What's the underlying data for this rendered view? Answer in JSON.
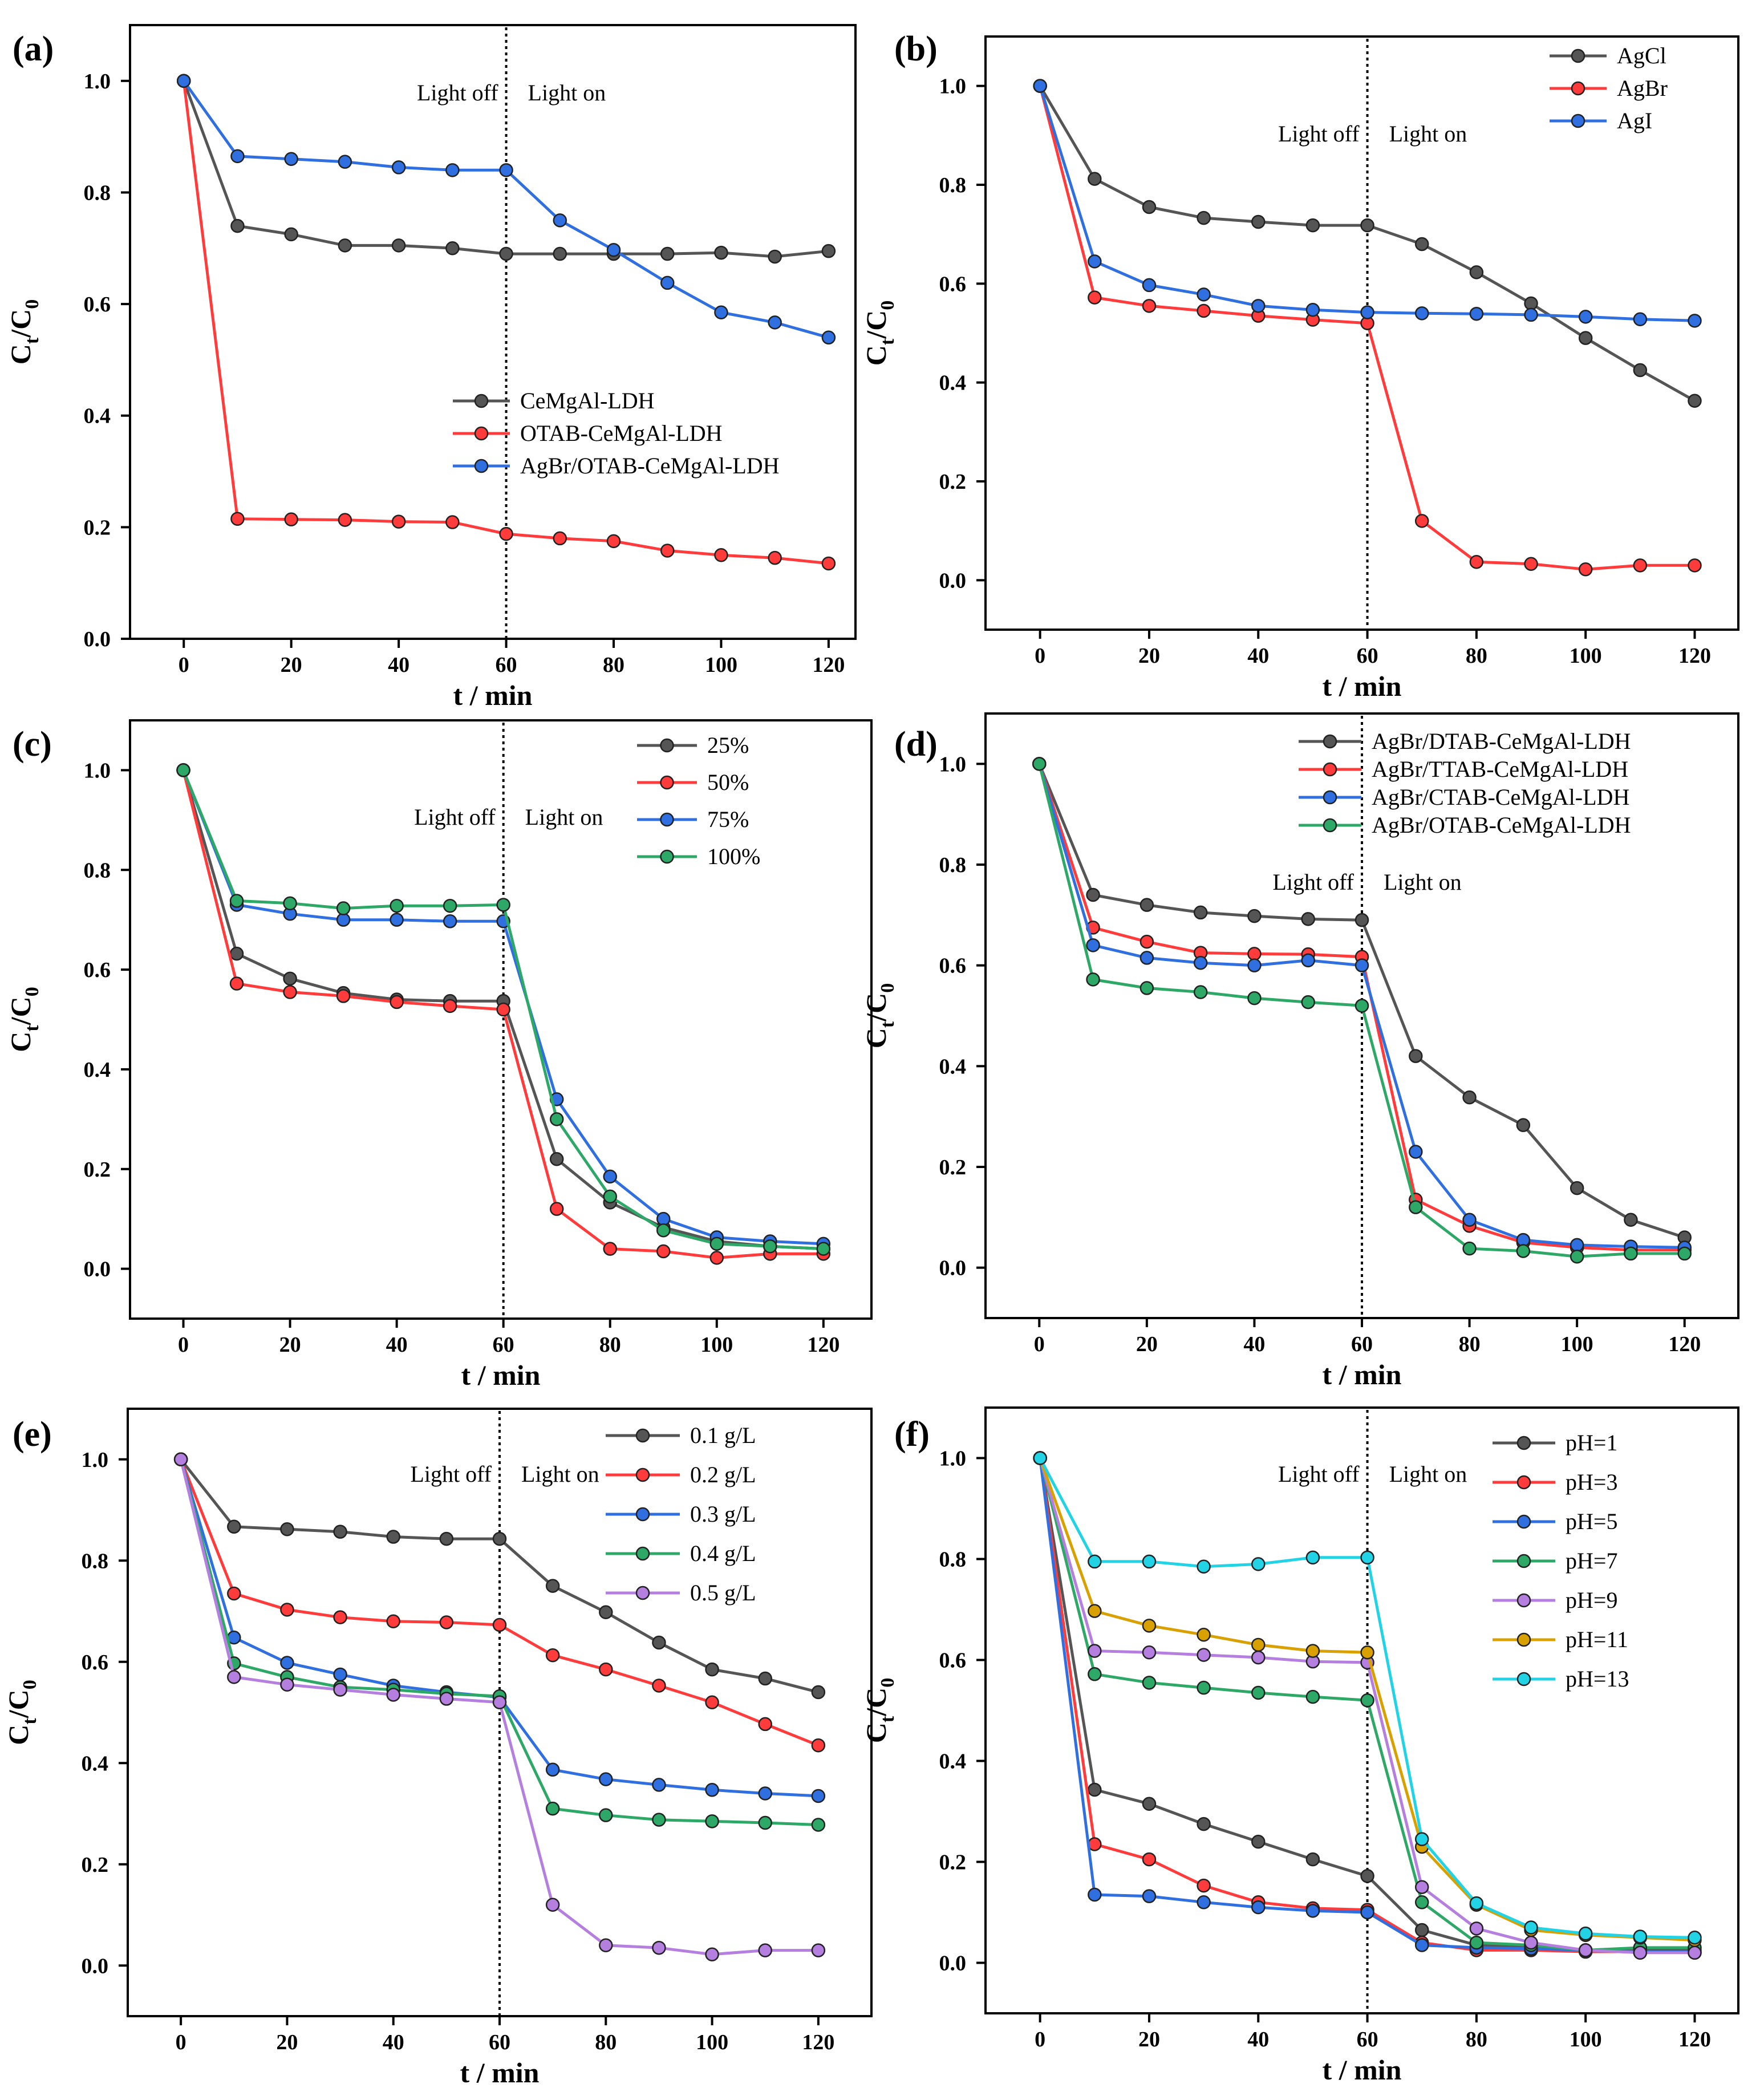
{
  "chart_data": [
    {
      "panel_label": "(a)",
      "type": "line",
      "xlabel": "t / min",
      "ylabel_main": "C",
      "ylabel_sub1": "t",
      "ylabel_mid": "/C",
      "ylabel_sub2": "0",
      "xlim": [
        -10,
        125
      ],
      "ylim": [
        0,
        1.1
      ],
      "xticks": [
        "0",
        "20",
        "40",
        "60",
        "80",
        "100",
        "120"
      ],
      "yticks": [
        "0.0",
        "0.2",
        "0.4",
        "0.6",
        "0.8",
        "1.0"
      ],
      "x": [
        0,
        10,
        20,
        30,
        40,
        50,
        60,
        70,
        80,
        90,
        100,
        110,
        120
      ],
      "divider_x": 60,
      "annotation_left": "Light off",
      "annotation_right": "Light on",
      "legend_position": "center-right",
      "series": [
        {
          "name": "CeMgAl-LDH",
          "color": "#555555",
          "values": [
            1.0,
            0.74,
            0.725,
            0.705,
            0.705,
            0.7,
            0.69,
            0.69,
            0.69,
            0.69,
            0.692,
            0.685,
            0.695
          ]
        },
        {
          "name": "OTAB-CeMgAl-LDH",
          "color": "#ff3b3b",
          "values": [
            1.0,
            0.215,
            0.214,
            0.213,
            0.21,
            0.209,
            0.188,
            0.18,
            0.175,
            0.158,
            0.15,
            0.145,
            0.135
          ]
        },
        {
          "name": "AgBr/OTAB-CeMgAl-LDH",
          "color": "#2f6fe0",
          "values": [
            1.0,
            0.865,
            0.86,
            0.855,
            0.845,
            0.84,
            0.84,
            0.75,
            0.697,
            0.638,
            0.585,
            0.567,
            0.54
          ]
        }
      ]
    },
    {
      "panel_label": "(b)",
      "type": "line",
      "xlabel": "t / min",
      "ylabel_main": "C",
      "ylabel_sub1": "t",
      "ylabel_mid": "/C",
      "ylabel_sub2": "0",
      "xlim": [
        -10,
        128
      ],
      "ylim": [
        -0.1,
        1.1
      ],
      "xticks": [
        "0",
        "20",
        "40",
        "60",
        "80",
        "100",
        "120"
      ],
      "yticks": [
        "0.0",
        "0.2",
        "0.4",
        "0.6",
        "0.8",
        "1.0"
      ],
      "x": [
        0,
        10,
        20,
        30,
        40,
        50,
        60,
        70,
        80,
        90,
        100,
        110,
        120
      ],
      "divider_x": 60,
      "annotation_left": "Light off",
      "annotation_right": "Light on",
      "legend_position": "top-right",
      "series": [
        {
          "name": "AgCl",
          "color": "#555555",
          "values": [
            1.0,
            0.812,
            0.755,
            0.733,
            0.725,
            0.718,
            0.718,
            0.68,
            0.623,
            0.56,
            0.49,
            0.425,
            0.363
          ]
        },
        {
          "name": "AgBr",
          "color": "#ff3b3b",
          "values": [
            1.0,
            0.572,
            0.555,
            0.545,
            0.535,
            0.527,
            0.52,
            0.12,
            0.037,
            0.033,
            0.022,
            0.03,
            0.03
          ]
        },
        {
          "name": "AgI",
          "color": "#2f6fe0",
          "values": [
            1.0,
            0.645,
            0.597,
            0.578,
            0.555,
            0.547,
            0.542,
            0.54,
            0.539,
            0.537,
            0.533,
            0.528,
            0.525
          ]
        }
      ]
    },
    {
      "panel_label": "(c)",
      "type": "line",
      "xlabel": "t / min",
      "ylabel_main": "C",
      "ylabel_sub1": "t",
      "ylabel_mid": "/C",
      "ylabel_sub2": "0",
      "xlim": [
        -10,
        129
      ],
      "ylim": [
        -0.1,
        1.1
      ],
      "xticks": [
        "0",
        "20",
        "40",
        "60",
        "80",
        "100",
        "120"
      ],
      "yticks": [
        "0.0",
        "0.2",
        "0.4",
        "0.6",
        "0.8",
        "1.0"
      ],
      "x": [
        0,
        10,
        20,
        30,
        40,
        50,
        60,
        70,
        80,
        90,
        100,
        110,
        120
      ],
      "divider_x": 60,
      "annotation_left": "Light off",
      "annotation_right": "Light on",
      "legend_position": "top-right",
      "series": [
        {
          "name": "25%",
          "color": "#555555",
          "values": [
            1.0,
            0.632,
            0.582,
            0.553,
            0.54,
            0.537,
            0.537,
            0.22,
            0.133,
            0.083,
            0.055,
            0.045,
            0.04
          ]
        },
        {
          "name": "50%",
          "color": "#ff3b3b",
          "values": [
            1.0,
            0.572,
            0.555,
            0.547,
            0.535,
            0.527,
            0.52,
            0.12,
            0.04,
            0.035,
            0.022,
            0.03,
            0.03
          ]
        },
        {
          "name": "75%",
          "color": "#2f6fe0",
          "values": [
            1.0,
            0.73,
            0.712,
            0.7,
            0.7,
            0.697,
            0.697,
            0.34,
            0.185,
            0.1,
            0.063,
            0.055,
            0.05
          ]
        },
        {
          "name": "100%",
          "color": "#2ea866",
          "values": [
            1.0,
            0.738,
            0.733,
            0.723,
            0.728,
            0.728,
            0.73,
            0.3,
            0.145,
            0.077,
            0.05,
            0.045,
            0.04
          ]
        }
      ]
    },
    {
      "panel_label": "(d)",
      "type": "line",
      "xlabel": "t / min",
      "ylabel_main": "C",
      "ylabel_sub1": "t",
      "ylabel_mid": "/C",
      "ylabel_sub2": "0",
      "xlim": [
        -10,
        130
      ],
      "ylim": [
        -0.1,
        1.1
      ],
      "xticks": [
        "0",
        "20",
        "40",
        "60",
        "80",
        "100",
        "120"
      ],
      "yticks": [
        "0.0",
        "0.2",
        "0.4",
        "0.6",
        "0.8",
        "1.0"
      ],
      "x": [
        0,
        10,
        20,
        30,
        40,
        50,
        60,
        70,
        80,
        90,
        100,
        110,
        120
      ],
      "divider_x": 60,
      "annotation_left": "Light off",
      "annotation_right": "Light on",
      "legend_position": "top-right",
      "series": [
        {
          "name": "AgBr/DTAB-CeMgAl-LDH",
          "color": "#555555",
          "values": [
            1.0,
            0.74,
            0.72,
            0.705,
            0.698,
            0.692,
            0.69,
            0.42,
            0.338,
            0.283,
            0.158,
            0.095,
            0.06
          ]
        },
        {
          "name": "AgBr/TTAB-CeMgAl-LDH",
          "color": "#ff3b3b",
          "values": [
            1.0,
            0.675,
            0.647,
            0.625,
            0.623,
            0.622,
            0.617,
            0.135,
            0.083,
            0.05,
            0.04,
            0.035,
            0.035
          ]
        },
        {
          "name": "AgBr/CTAB-CeMgAl-LDH",
          "color": "#2f6fe0",
          "values": [
            1.0,
            0.64,
            0.615,
            0.605,
            0.6,
            0.61,
            0.6,
            0.23,
            0.095,
            0.055,
            0.045,
            0.042,
            0.04
          ]
        },
        {
          "name": "AgBr/OTAB-CeMgAl-LDH",
          "color": "#2ea866",
          "values": [
            1.0,
            0.572,
            0.555,
            0.547,
            0.535,
            0.527,
            0.52,
            0.12,
            0.038,
            0.033,
            0.022,
            0.028,
            0.028
          ]
        }
      ]
    },
    {
      "panel_label": "(e)",
      "type": "line",
      "xlabel": "t / min",
      "ylabel_main": "C",
      "ylabel_sub1": "t",
      "ylabel_mid": "/C",
      "ylabel_sub2": "0",
      "xlim": [
        -10,
        130
      ],
      "ylim": [
        -0.1,
        1.1
      ],
      "xticks": [
        "0",
        "20",
        "40",
        "60",
        "80",
        "100",
        "120"
      ],
      "yticks": [
        "0.0",
        "0.2",
        "0.4",
        "0.6",
        "0.8",
        "1.0"
      ],
      "x": [
        0,
        10,
        20,
        30,
        40,
        50,
        60,
        70,
        80,
        90,
        100,
        110,
        120
      ],
      "divider_x": 60,
      "annotation_left": "Light off",
      "annotation_right": "Light on",
      "legend_position": "top-right",
      "series": [
        {
          "name": "0.1 g/L",
          "color": "#555555",
          "values": [
            1.0,
            0.867,
            0.862,
            0.857,
            0.847,
            0.843,
            0.843,
            0.75,
            0.698,
            0.638,
            0.585,
            0.567,
            0.54
          ]
        },
        {
          "name": "0.2 g/L",
          "color": "#ff3b3b",
          "values": [
            1.0,
            0.735,
            0.703,
            0.688,
            0.68,
            0.678,
            0.673,
            0.613,
            0.585,
            0.553,
            0.52,
            0.477,
            0.435
          ]
        },
        {
          "name": "0.3 g/L",
          "color": "#2f6fe0",
          "values": [
            1.0,
            0.648,
            0.598,
            0.575,
            0.553,
            0.54,
            0.53,
            0.387,
            0.368,
            0.357,
            0.347,
            0.34,
            0.335
          ]
        },
        {
          "name": "0.4 g/L",
          "color": "#2ea866",
          "values": [
            1.0,
            0.597,
            0.57,
            0.55,
            0.545,
            0.537,
            0.532,
            0.31,
            0.297,
            0.288,
            0.285,
            0.282,
            0.278
          ]
        },
        {
          "name": "0.5 g/L",
          "color": "#b57fe0",
          "values": [
            1.0,
            0.57,
            0.555,
            0.545,
            0.535,
            0.527,
            0.52,
            0.12,
            0.04,
            0.035,
            0.022,
            0.03,
            0.03
          ]
        }
      ]
    },
    {
      "panel_label": "(f)",
      "type": "line",
      "xlabel": "t / min",
      "ylabel_main": "C",
      "ylabel_sub1": "t",
      "ylabel_mid": "/C",
      "ylabel_sub2": "0",
      "xlim": [
        -10,
        128
      ],
      "ylim": [
        -0.1,
        1.1
      ],
      "xticks": [
        "0",
        "20",
        "40",
        "60",
        "80",
        "100",
        "120"
      ],
      "yticks": [
        "0.0",
        "0.2",
        "0.4",
        "0.6",
        "0.8",
        "1.0"
      ],
      "x": [
        0,
        10,
        20,
        30,
        40,
        50,
        60,
        70,
        80,
        90,
        100,
        110,
        120
      ],
      "divider_x": 60,
      "annotation_left": "Light off",
      "annotation_right": "Light on",
      "legend_position": "top-right",
      "series": [
        {
          "name": "pH=1",
          "color": "#555555",
          "values": [
            1.0,
            0.343,
            0.315,
            0.275,
            0.24,
            0.205,
            0.172,
            0.065,
            0.035,
            0.03,
            0.025,
            0.025,
            0.025
          ]
        },
        {
          "name": "pH=3",
          "color": "#ff3b3b",
          "values": [
            1.0,
            0.235,
            0.205,
            0.153,
            0.12,
            0.108,
            0.105,
            0.04,
            0.025,
            0.025,
            0.022,
            0.022,
            0.02
          ]
        },
        {
          "name": "pH=5",
          "color": "#2f6fe0",
          "values": [
            1.0,
            0.135,
            0.132,
            0.12,
            0.11,
            0.103,
            0.1,
            0.035,
            0.03,
            0.028,
            0.025,
            0.022,
            0.022
          ]
        },
        {
          "name": "pH=7",
          "color": "#2ea866",
          "values": [
            1.0,
            0.572,
            0.555,
            0.545,
            0.535,
            0.527,
            0.52,
            0.12,
            0.04,
            0.035,
            0.025,
            0.03,
            0.03
          ]
        },
        {
          "name": "pH=9",
          "color": "#b57fe0",
          "values": [
            1.0,
            0.618,
            0.615,
            0.61,
            0.605,
            0.597,
            0.595,
            0.15,
            0.068,
            0.04,
            0.025,
            0.02,
            0.02
          ]
        },
        {
          "name": "pH=11",
          "color": "#d9a100",
          "values": [
            1.0,
            0.697,
            0.668,
            0.65,
            0.63,
            0.618,
            0.615,
            0.23,
            0.115,
            0.065,
            0.055,
            0.05,
            0.045
          ]
        },
        {
          "name": "pH=13",
          "color": "#22d3e6",
          "values": [
            1.0,
            0.795,
            0.795,
            0.785,
            0.79,
            0.803,
            0.803,
            0.245,
            0.118,
            0.07,
            0.058,
            0.052,
            0.05
          ]
        }
      ]
    }
  ]
}
